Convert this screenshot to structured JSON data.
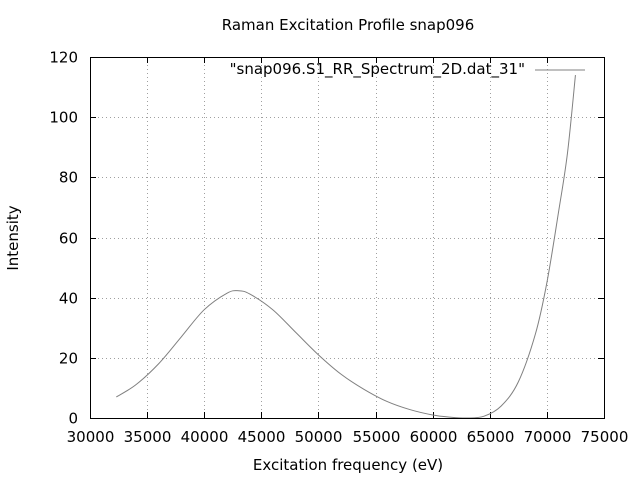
{
  "chart_data": {
    "type": "line",
    "title": "Raman Excitation Profile snap096",
    "xlabel": "Excitation frequency (eV)",
    "ylabel": "Intensity",
    "xlim": [
      30000,
      75000
    ],
    "ylim": [
      0,
      120
    ],
    "xticks": [
      "30000",
      "35000",
      "40000",
      "45000",
      "50000",
      "55000",
      "60000",
      "65000",
      "70000",
      "75000"
    ],
    "yticks": [
      "0",
      "20",
      "40",
      "60",
      "80",
      "100",
      "120"
    ],
    "grid": true,
    "legend_position": "top-right",
    "series": [
      {
        "name": "\"snap096.S1_RR_Spectrum_2D.dat_31\"",
        "color": "#808080",
        "x": [
          32300,
          34000,
          36000,
          38000,
          40000,
          42000,
          43000,
          44000,
          46000,
          48000,
          50000,
          52000,
          54000,
          56000,
          58000,
          60000,
          61500,
          63000,
          64500,
          66000,
          67500,
          69000,
          70000,
          71000,
          71800,
          72500
        ],
        "y": [
          7,
          11,
          18,
          27,
          36,
          41.5,
          42.3,
          41.2,
          36,
          28.5,
          21,
          14.5,
          9.5,
          5.5,
          2.8,
          1,
          0.3,
          0,
          0.6,
          4,
          12,
          28,
          45,
          68,
          88,
          114
        ]
      }
    ]
  }
}
